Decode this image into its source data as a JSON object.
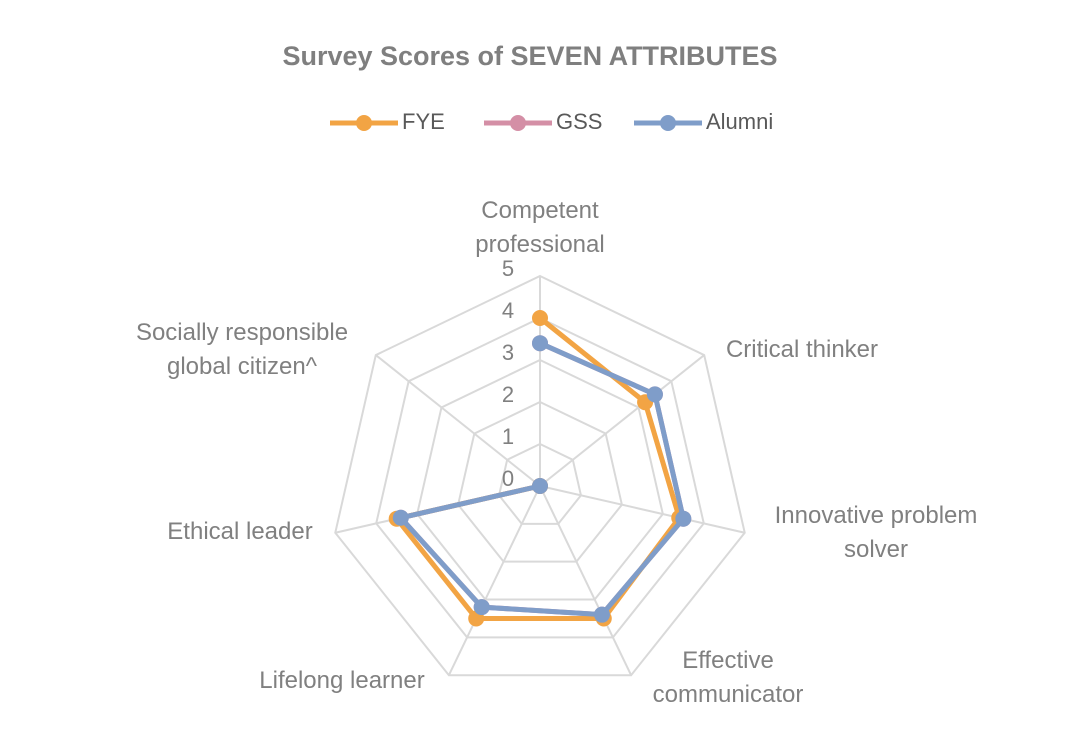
{
  "chart_data": {
    "type": "radar",
    "title": "Survey Scores of SEVEN ATTRIBUTES",
    "categories": [
      "Competent professional",
      "Critical thinker",
      "Innovative problem solver",
      "Effective communicator",
      "Lifelong learner",
      "Ethical leader",
      "Socially responsible global citizen^"
    ],
    "series": [
      {
        "name": "FYE",
        "color": "#f2a444",
        "values": [
          4.0,
          3.2,
          3.4,
          3.5,
          3.5,
          3.5,
          0
        ]
      },
      {
        "name": "GSS",
        "color": "#d48fa6",
        "values": [
          3.4,
          3.5,
          3.5,
          3.4,
          3.2,
          3.4,
          0
        ]
      },
      {
        "name": "Alumni",
        "color": "#7f9dc9",
        "values": [
          3.4,
          3.5,
          3.5,
          3.4,
          3.2,
          3.4,
          0
        ]
      }
    ],
    "ylim": [
      0,
      5
    ],
    "yticks": [
      0,
      1,
      2,
      3,
      4,
      5
    ],
    "grid": true,
    "legend": "top"
  }
}
